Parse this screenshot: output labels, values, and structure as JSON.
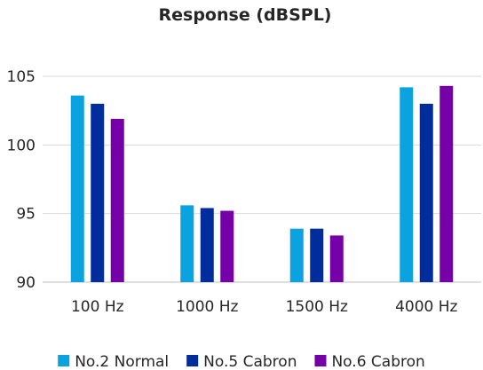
{
  "chart_data": {
    "type": "bar",
    "title": "Response (dBSPL)",
    "xlabel": "",
    "ylabel": "",
    "categories": [
      "100 Hz",
      "1000 Hz",
      "1500 Hz",
      "4000 Hz"
    ],
    "series": [
      {
        "name": "No.2 Normal",
        "color": "#0aa3df",
        "values": [
          103.6,
          95.6,
          93.9,
          104.2
        ]
      },
      {
        "name": "No.5 Cabron",
        "color": "#002c9c",
        "values": [
          103.0,
          95.4,
          93.9,
          103.0
        ]
      },
      {
        "name": "No.6 Cabron",
        "color": "#7500a8",
        "values": [
          101.9,
          95.2,
          93.4,
          104.3
        ]
      }
    ],
    "yticks": [
      "90",
      "95",
      "100",
      "105"
    ],
    "ylim": [
      90,
      107
    ],
    "grid": true,
    "legend_position": "bottom"
  }
}
